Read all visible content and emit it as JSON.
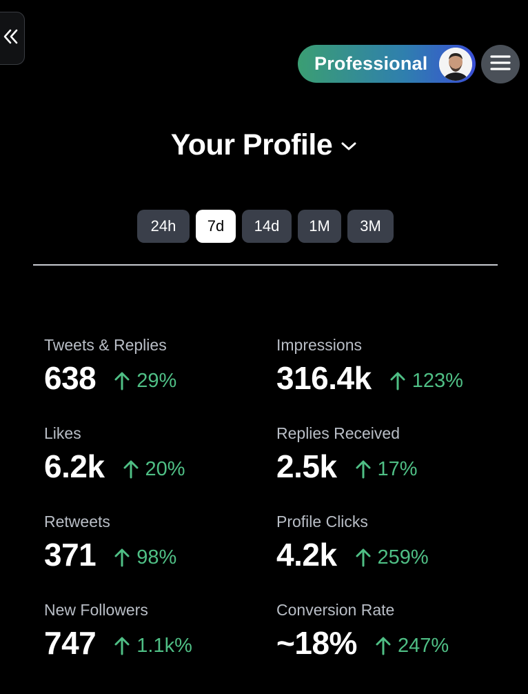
{
  "header": {
    "professional_label": "Professional",
    "collapse_icon": "double-chevron-left-icon",
    "menu_icon": "hamburger-menu-icon"
  },
  "title": {
    "text": "Your Profile",
    "dropdown_icon": "chevron-down-icon"
  },
  "ranges": [
    {
      "label": "24h",
      "active": false
    },
    {
      "label": "7d",
      "active": true
    },
    {
      "label": "14d",
      "active": false
    },
    {
      "label": "1M",
      "active": false
    },
    {
      "label": "3M",
      "active": false
    }
  ],
  "stats": [
    {
      "label": "Tweets & Replies",
      "value": "638",
      "change": "29%"
    },
    {
      "label": "Impressions",
      "value": "316.4k",
      "change": "123%"
    },
    {
      "label": "Likes",
      "value": "6.2k",
      "change": "20%"
    },
    {
      "label": "Replies Received",
      "value": "2.5k",
      "change": "17%"
    },
    {
      "label": "Retweets",
      "value": "371",
      "change": "98%"
    },
    {
      "label": "Profile Clicks",
      "value": "4.2k",
      "change": "259%"
    },
    {
      "label": "New Followers",
      "value": "747",
      "change": "1.1k%"
    },
    {
      "label": "Conversion Rate",
      "value": "~18%",
      "change": "247%"
    }
  ],
  "colors": {
    "background": "#000000",
    "positive": "#4fbf85",
    "tab_inactive": "#3a3f4a",
    "tab_active": "#ffffff",
    "label": "#b9bec6"
  }
}
